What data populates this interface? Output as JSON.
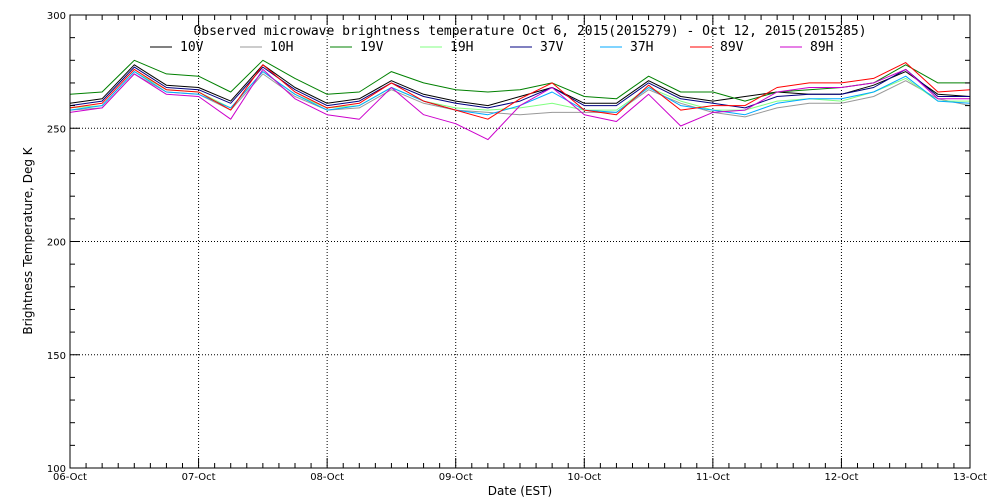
{
  "chart_data": {
    "type": "line",
    "title": "Observed microwave brightness temperature Oct  6, 2015(2015279) - Oct 12, 2015(2015285)",
    "xlabel": "Date (EST)",
    "ylabel": "Brightness Temperature, Deg K",
    "ylim": [
      100,
      300
    ],
    "yticks": [
      100,
      150,
      200,
      250,
      300
    ],
    "xlim": [
      "2015-10-06",
      "2015-10-13"
    ],
    "xtick_labels": [
      "06-Oct",
      "07-Oct",
      "08-Oct",
      "09-Oct",
      "10-Oct",
      "11-Oct",
      "12-Oct",
      "13-Oct"
    ],
    "grid": true,
    "legend_position": "top",
    "x": [
      6.0,
      6.25,
      6.5,
      6.75,
      7.0,
      7.25,
      7.5,
      7.75,
      8.0,
      8.25,
      8.5,
      8.75,
      9.0,
      9.25,
      9.5,
      9.75,
      10.0,
      10.25,
      10.5,
      10.75,
      11.0,
      11.25,
      11.5,
      11.75,
      12.0,
      12.25,
      12.5,
      12.75,
      13.0
    ],
    "series": [
      {
        "name": "10V",
        "color": "#000000",
        "values": [
          261,
          263,
          278,
          269,
          268,
          262,
          278,
          268,
          261,
          263,
          271,
          265,
          262,
          260,
          264,
          268,
          261,
          261,
          271,
          264,
          262,
          264,
          266,
          265,
          265,
          269,
          275,
          265,
          264
        ]
      },
      {
        "name": "10H",
        "color": "#999999",
        "values": [
          258,
          259,
          274,
          266,
          265,
          258,
          274,
          264,
          258,
          259,
          267,
          261,
          258,
          257,
          256,
          257,
          257,
          257,
          267,
          261,
          257,
          255,
          259,
          261,
          261,
          264,
          271,
          263,
          260
        ]
      },
      {
        "name": "19V",
        "color": "#008000",
        "values": [
          265,
          266,
          280,
          274,
          273,
          266,
          280,
          272,
          265,
          266,
          275,
          270,
          267,
          266,
          267,
          270,
          264,
          263,
          273,
          266,
          266,
          262,
          266,
          267,
          268,
          270,
          278,
          270,
          270
        ]
      },
      {
        "name": "19H",
        "color": "#80ff80",
        "values": [
          259,
          260,
          275,
          267,
          266,
          259,
          275,
          265,
          259,
          260,
          268,
          262,
          259,
          258,
          259,
          261,
          258,
          258,
          268,
          262,
          258,
          258,
          262,
          263,
          262,
          266,
          272,
          262,
          262
        ]
      },
      {
        "name": "37V",
        "color": "#000080",
        "values": [
          260,
          262,
          277,
          268,
          267,
          261,
          277,
          267,
          260,
          262,
          270,
          264,
          261,
          259,
          262,
          268,
          260,
          260,
          270,
          263,
          261,
          259,
          264,
          265,
          265,
          268,
          276,
          264,
          264
        ]
      },
      {
        "name": "37H",
        "color": "#00aaff",
        "values": [
          258,
          260,
          275,
          266,
          265,
          259,
          275,
          265,
          258,
          260,
          268,
          262,
          258,
          256,
          260,
          266,
          258,
          257,
          268,
          260,
          258,
          256,
          261,
          263,
          263,
          266,
          273,
          262,
          261
        ]
      },
      {
        "name": "89V",
        "color": "#ff0000",
        "values": [
          259,
          261,
          276,
          267,
          266,
          258,
          278,
          266,
          259,
          261,
          270,
          262,
          258,
          254,
          263,
          270,
          258,
          256,
          269,
          258,
          260,
          260,
          268,
          270,
          270,
          272,
          279,
          266,
          267
        ]
      },
      {
        "name": "89H",
        "color": "#cc00cc",
        "values": [
          257,
          259,
          274,
          265,
          264,
          254,
          276,
          263,
          256,
          254,
          268,
          256,
          252,
          245,
          260,
          268,
          256,
          253,
          265,
          251,
          257,
          258,
          266,
          268,
          268,
          270,
          276,
          263,
          263
        ]
      }
    ]
  }
}
